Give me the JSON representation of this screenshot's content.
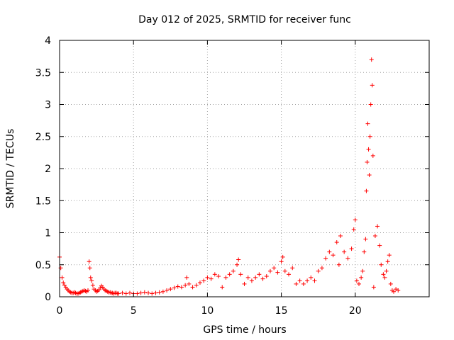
{
  "chart_data": {
    "type": "scatter",
    "title": "Day 012 of 2025, SRMTID for receiver func",
    "xlabel": "GPS time / hours",
    "ylabel": "SRMTID / TECUs",
    "xlim": [
      0,
      25
    ],
    "ylim": [
      0,
      4
    ],
    "xticks": [
      "0",
      "5",
      "10",
      "15",
      "20"
    ],
    "yticks": [
      "0",
      "0.5",
      "1",
      "1.5",
      "2",
      "2.5",
      "3",
      "3.5",
      "4"
    ],
    "grid": true,
    "marker": "+",
    "color": "#ff0000",
    "series": [
      {
        "name": "SRMTID",
        "x": [
          0.0,
          0.08,
          0.17,
          0.25,
          0.33,
          0.42,
          0.5,
          0.58,
          0.67,
          0.75,
          0.83,
          0.92,
          1.0,
          1.08,
          1.17,
          1.25,
          1.33,
          1.42,
          1.5,
          1.58,
          1.67,
          1.75,
          1.83,
          1.92,
          2.0,
          2.05,
          2.1,
          2.17,
          2.25,
          2.33,
          2.42,
          2.5,
          2.58,
          2.67,
          2.75,
          2.83,
          2.92,
          3.0,
          3.08,
          3.17,
          3.25,
          3.33,
          3.42,
          3.5,
          3.58,
          3.67,
          3.75,
          3.83,
          3.92,
          4.0,
          4.25,
          4.5,
          4.75,
          5.0,
          5.25,
          5.5,
          5.75,
          6.0,
          6.25,
          6.5,
          6.75,
          7.0,
          7.25,
          7.5,
          7.75,
          8.0,
          8.25,
          8.5,
          8.6,
          8.75,
          9.0,
          9.25,
          9.5,
          9.75,
          10.0,
          10.25,
          10.5,
          10.75,
          11.0,
          11.25,
          11.5,
          11.75,
          12.0,
          12.1,
          12.25,
          12.5,
          12.75,
          13.0,
          13.25,
          13.5,
          13.75,
          14.0,
          14.25,
          14.5,
          14.75,
          15.0,
          15.1,
          15.25,
          15.5,
          15.75,
          16.0,
          16.25,
          16.5,
          16.75,
          17.0,
          17.25,
          17.5,
          17.75,
          18.0,
          18.25,
          18.5,
          18.75,
          18.9,
          19.0,
          19.25,
          19.5,
          19.75,
          19.9,
          20.0,
          20.1,
          20.25,
          20.4,
          20.5,
          20.6,
          20.7,
          20.75,
          20.8,
          20.85,
          20.9,
          20.95,
          21.0,
          21.05,
          21.1,
          21.15,
          21.2,
          21.25,
          21.35,
          21.5,
          21.65,
          21.75,
          21.9,
          22.0,
          22.1,
          22.2,
          22.3,
          22.4,
          22.5,
          22.6,
          22.75,
          22.9
        ],
        "y": [
          0.62,
          0.45,
          0.3,
          0.22,
          0.18,
          0.15,
          0.12,
          0.1,
          0.08,
          0.07,
          0.06,
          0.06,
          0.07,
          0.06,
          0.05,
          0.05,
          0.06,
          0.07,
          0.08,
          0.09,
          0.1,
          0.09,
          0.08,
          0.1,
          0.55,
          0.45,
          0.3,
          0.25,
          0.18,
          0.12,
          0.1,
          0.08,
          0.09,
          0.11,
          0.14,
          0.17,
          0.15,
          0.12,
          0.1,
          0.09,
          0.08,
          0.07,
          0.07,
          0.06,
          0.06,
          0.05,
          0.06,
          0.06,
          0.05,
          0.05,
          0.06,
          0.05,
          0.06,
          0.05,
          0.05,
          0.06,
          0.07,
          0.06,
          0.05,
          0.06,
          0.07,
          0.08,
          0.1,
          0.12,
          0.14,
          0.16,
          0.15,
          0.18,
          0.3,
          0.2,
          0.15,
          0.18,
          0.22,
          0.25,
          0.3,
          0.28,
          0.35,
          0.32,
          0.15,
          0.3,
          0.35,
          0.4,
          0.5,
          0.58,
          0.35,
          0.2,
          0.3,
          0.25,
          0.3,
          0.35,
          0.28,
          0.32,
          0.4,
          0.45,
          0.38,
          0.55,
          0.62,
          0.4,
          0.35,
          0.45,
          0.2,
          0.25,
          0.2,
          0.25,
          0.3,
          0.25,
          0.4,
          0.45,
          0.6,
          0.7,
          0.65,
          0.85,
          0.5,
          0.95,
          0.7,
          0.6,
          0.75,
          1.05,
          1.2,
          0.25,
          0.2,
          0.3,
          0.4,
          0.7,
          0.9,
          1.65,
          2.1,
          2.7,
          2.3,
          1.9,
          2.5,
          3.0,
          3.7,
          3.3,
          2.2,
          0.15,
          0.95,
          1.1,
          0.8,
          0.5,
          0.35,
          0.3,
          0.4,
          0.55,
          0.65,
          0.2,
          0.1,
          0.08,
          0.12,
          0.1
        ]
      }
    ]
  }
}
